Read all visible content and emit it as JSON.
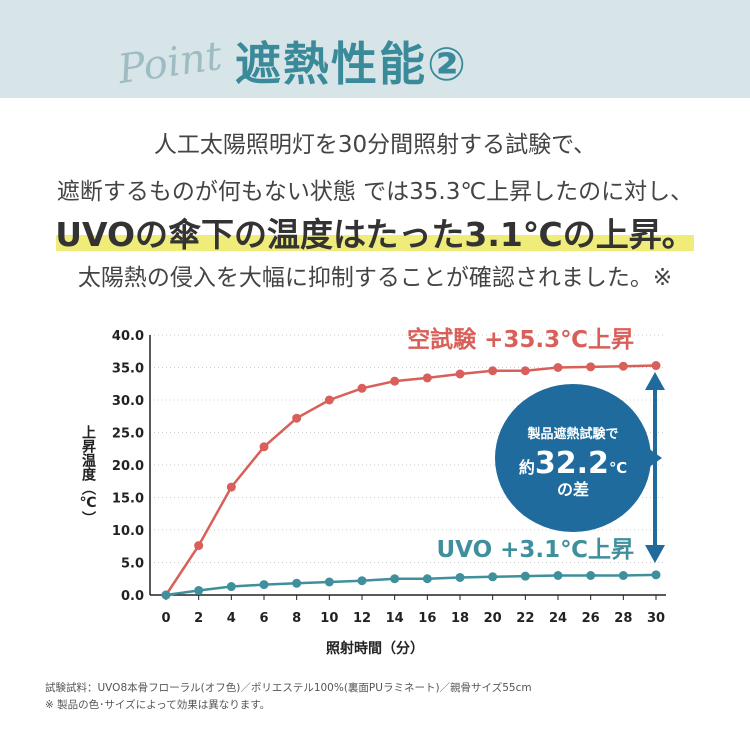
{
  "header": {
    "script": "Point",
    "title": "遮熱性能②"
  },
  "intro": {
    "line1": "人工太陽照明灯を30分間照射する試験で、",
    "line2": "遮断するものが何もない状態 では35.3℃上昇したのに対し、",
    "line3": "UVOの傘下の温度はたった3.1℃の上昇。",
    "line4": "太陽熱の侵入を大幅に抑制することが確認されました。※"
  },
  "chart_data": {
    "type": "line",
    "xlabel": "照射時間（分）",
    "ylabel": "上昇温度（℃）",
    "x": [
      0,
      2,
      4,
      6,
      8,
      10,
      12,
      14,
      16,
      18,
      20,
      22,
      24,
      26,
      28,
      30
    ],
    "xlim": [
      0,
      30
    ],
    "ylim": [
      0,
      40
    ],
    "yticks": [
      "0.0",
      "5.0",
      "10.0",
      "15.0",
      "20.0",
      "25.0",
      "30.0",
      "35.0",
      "40.0"
    ],
    "grid": "horizontal dotted",
    "series": [
      {
        "name": "空試験 +35.3℃上昇",
        "color": "#d9605a",
        "values": [
          0,
          7.6,
          16.6,
          22.8,
          27.2,
          30.0,
          31.8,
          32.9,
          33.4,
          34.0,
          34.5,
          34.5,
          35.0,
          35.1,
          35.2,
          35.3
        ]
      },
      {
        "name": "UVO +3.1℃上昇",
        "color": "#3f8f9c",
        "values": [
          0,
          0.7,
          1.3,
          1.6,
          1.8,
          2.0,
          2.2,
          2.5,
          2.5,
          2.7,
          2.8,
          2.9,
          3.0,
          3.0,
          3.0,
          3.1
        ]
      }
    ],
    "annotation": {
      "line1": "製品遮熱試験で",
      "prefix": "約",
      "value": "32.2",
      "unit": "℃",
      "line3": "の差",
      "color": "#1f6b9e"
    }
  },
  "footnote": {
    "line1": "試験試料：UVO8本骨フローラル(オフ色)／ポリエステル100%(裏面PUラミネート)／親骨サイズ55cm",
    "line2": "※ 製品の色･サイズによって効果は異なります。"
  }
}
